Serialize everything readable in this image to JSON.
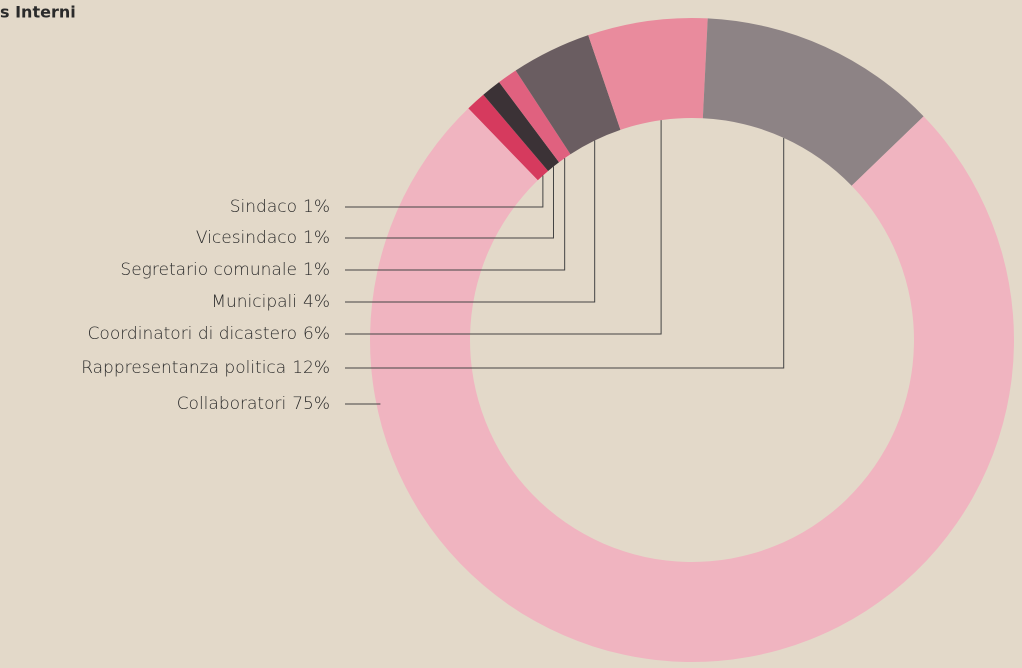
{
  "chart_data": {
    "type": "donut",
    "title": "s Interni",
    "categories": [
      "Sindaco",
      "Vicesindaco",
      "Segretario comunale",
      "Municipali",
      "Coordinatori di dicastero",
      "Rappresentanza politica",
      "Collaboratori"
    ],
    "values": [
      1,
      1,
      1,
      4,
      6,
      12,
      75
    ],
    "value_labels": [
      "1%",
      "1%",
      "1%",
      "4%",
      "6%",
      "12%",
      "75%"
    ],
    "colors": [
      "#d63a5e",
      "#3b3236",
      "#e0617f",
      "#6a5d61",
      "#e98b9d",
      "#8d8385",
      "#f0b4c0"
    ]
  }
}
